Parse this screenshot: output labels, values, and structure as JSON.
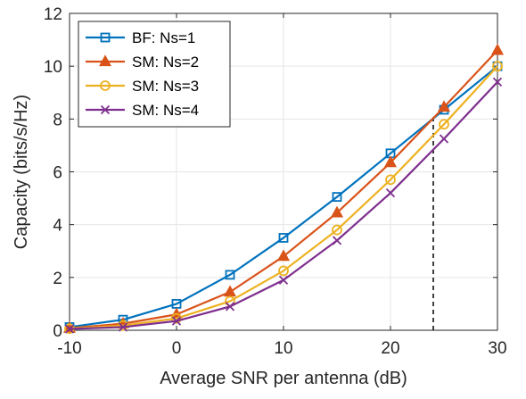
{
  "chart_data": {
    "type": "line",
    "xlabel": "Average SNR per antenna (dB)",
    "ylabel": "Capacity (bits/s/Hz)",
    "xlim": [
      -10,
      30
    ],
    "ylim": [
      0,
      12
    ],
    "xticks": [
      -10,
      0,
      10,
      20,
      30
    ],
    "yticks": [
      0,
      2,
      4,
      6,
      8,
      10,
      12
    ],
    "grid": true,
    "legend_position": "top-left",
    "x": [
      -10,
      -5,
      0,
      5,
      10,
      15,
      20,
      25,
      30
    ],
    "series": [
      {
        "name": "BF: Ns=1",
        "color": "#0072BD",
        "marker": "square",
        "values": [
          0.12,
          0.4,
          1.0,
          2.1,
          3.5,
          5.05,
          6.7,
          8.35,
          10.0
        ]
      },
      {
        "name": "SM: Ns=2",
        "color": "#D95319",
        "marker": "triangle",
        "values": [
          0.08,
          0.25,
          0.6,
          1.45,
          2.8,
          4.45,
          6.35,
          8.45,
          10.6
        ]
      },
      {
        "name": "SM: Ns=3",
        "color": "#EDB120",
        "marker": "circle",
        "values": [
          0.06,
          0.18,
          0.45,
          1.1,
          2.25,
          3.8,
          5.7,
          7.8,
          10.0
        ]
      },
      {
        "name": "SM: Ns=4",
        "color": "#7E2F8E",
        "marker": "x",
        "values": [
          0.05,
          0.12,
          0.35,
          0.9,
          1.9,
          3.4,
          5.2,
          7.25,
          9.4
        ]
      }
    ],
    "annotations": [
      {
        "type": "vertical-dashed-line",
        "x": 24,
        "y_from": 0,
        "y_to": 8.2
      }
    ]
  }
}
